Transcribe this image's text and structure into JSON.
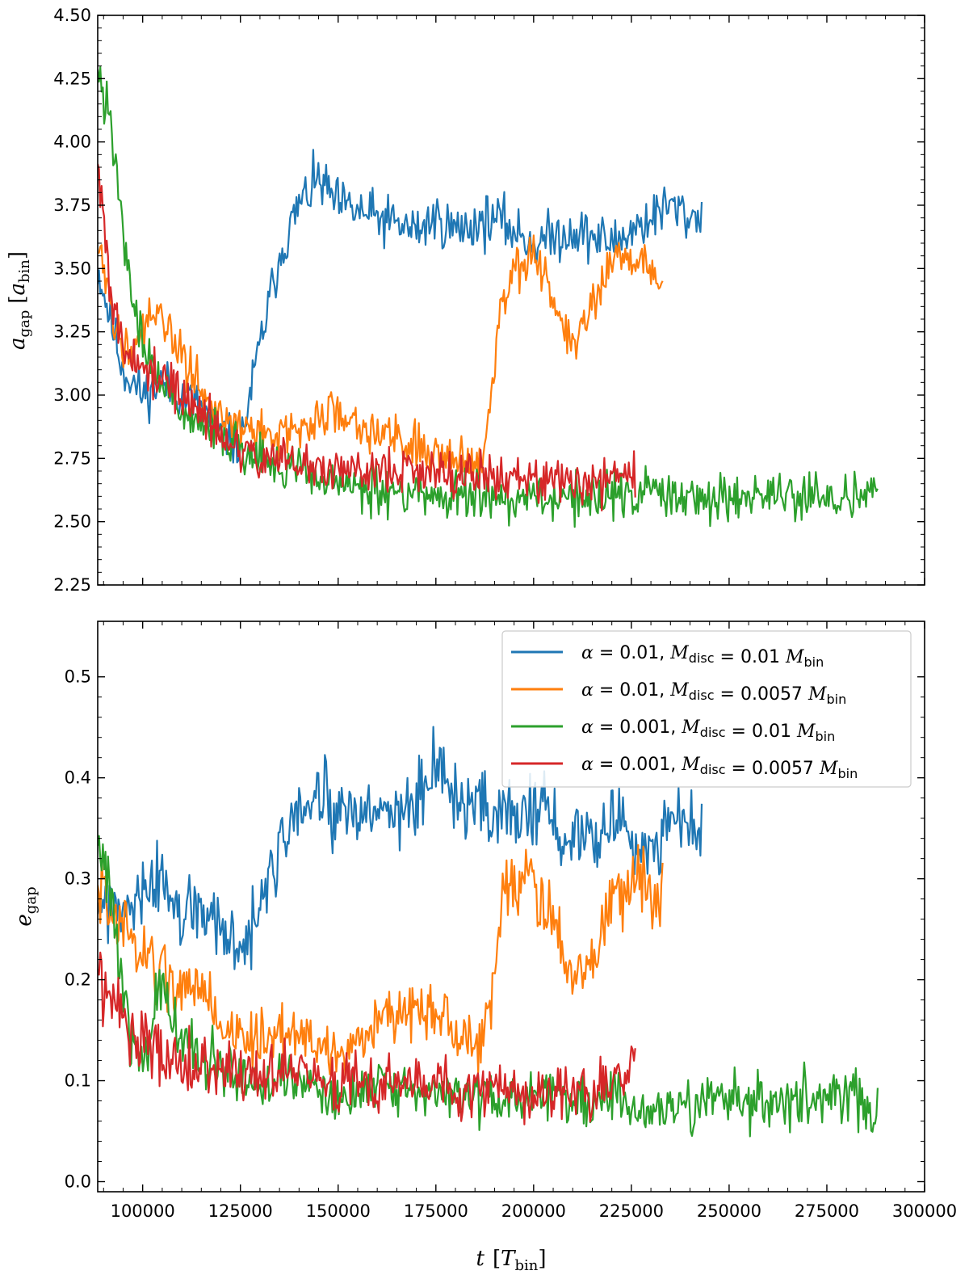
{
  "chart_data": [
    {
      "type": "line",
      "panel": "top",
      "ylabel": "a_gap [a_bin]",
      "ylabel_main": "a",
      "ylabel_sub": "gap",
      "ylabel_unit_main": "a",
      "ylabel_unit_sub": "bin",
      "xlim": [
        88500,
        300000
      ],
      "ylim": [
        2.25,
        4.5
      ],
      "yticks": [
        "2.25",
        "2.50",
        "2.75",
        "3.00",
        "3.25",
        "3.50",
        "3.75",
        "4.00",
        "4.25",
        "4.50"
      ],
      "ytick_values": [
        2.25,
        2.5,
        2.75,
        3.0,
        3.25,
        3.5,
        3.75,
        4.0,
        4.25,
        4.5
      ],
      "series": [
        {
          "name": "alpha=0.01, M_disc=0.01 M_bin",
          "color": "#1f77b4",
          "x": [
            88500,
            95000,
            100000,
            105000,
            110000,
            115000,
            120000,
            125000,
            130000,
            135000,
            140000,
            145000,
            150000,
            160000,
            170000,
            175000,
            180000,
            190000,
            200000,
            210000,
            220000,
            230000,
            235000,
            240000,
            243000
          ],
          "y": [
            3.5,
            3.1,
            3.0,
            3.05,
            3.0,
            2.95,
            2.85,
            2.8,
            3.2,
            3.55,
            3.75,
            3.85,
            3.75,
            3.7,
            3.65,
            3.7,
            3.65,
            3.7,
            3.6,
            3.65,
            3.6,
            3.7,
            3.75,
            3.7,
            3.72
          ]
        },
        {
          "name": "alpha=0.01, M_disc=0.0057 M_bin",
          "color": "#ff7f0e",
          "x": [
            88500,
            92000,
            96000,
            100000,
            105000,
            110000,
            115000,
            120000,
            130000,
            140000,
            150000,
            160000,
            170000,
            180000,
            187000,
            192000,
            195000,
            200000,
            205000,
            210000,
            215000,
            220000,
            225000,
            230000,
            233000
          ],
          "y": [
            3.6,
            3.3,
            3.2,
            3.25,
            3.3,
            3.15,
            3.05,
            2.9,
            2.85,
            2.85,
            2.95,
            2.85,
            2.8,
            2.75,
            2.75,
            3.4,
            3.5,
            3.55,
            3.35,
            3.2,
            3.35,
            3.5,
            3.55,
            3.5,
            3.45
          ]
        },
        {
          "name": "alpha=0.001, M_disc=0.01 M_bin",
          "color": "#2ca02c",
          "x": [
            88500,
            91000,
            94000,
            97000,
            100000,
            105000,
            110000,
            120000,
            130000,
            140000,
            150000,
            160000,
            170000,
            180000,
            190000,
            200000,
            210000,
            220000,
            230000,
            240000,
            250000,
            260000,
            270000,
            280000,
            288000
          ],
          "y": [
            4.3,
            4.1,
            3.8,
            3.4,
            3.2,
            3.05,
            2.95,
            2.85,
            2.75,
            2.7,
            2.65,
            2.62,
            2.62,
            2.6,
            2.6,
            2.6,
            2.6,
            2.6,
            2.62,
            2.6,
            2.6,
            2.6,
            2.6,
            2.6,
            2.65
          ]
        },
        {
          "name": "alpha=0.001, M_disc=0.0057 M_bin",
          "color": "#d62728",
          "x": [
            88500,
            92000,
            96000,
            100000,
            105000,
            110000,
            120000,
            130000,
            140000,
            150000,
            160000,
            170000,
            180000,
            190000,
            200000,
            210000,
            220000,
            226000
          ],
          "y": [
            3.9,
            3.35,
            3.15,
            3.1,
            3.05,
            3.0,
            2.85,
            2.75,
            2.72,
            2.72,
            2.7,
            2.7,
            2.68,
            2.68,
            2.66,
            2.66,
            2.65,
            2.68
          ]
        }
      ]
    },
    {
      "type": "line",
      "panel": "bottom",
      "ylabel": "e_gap",
      "ylabel_main": "e",
      "ylabel_sub": "gap",
      "xlabel": "t [T_bin]",
      "xlabel_main": "t",
      "xlabel_unit_main": "T",
      "xlabel_unit_sub": "bin",
      "xlim": [
        88500,
        300000
      ],
      "ylim": [
        -0.01,
        0.555
      ],
      "xticks": [
        "100000",
        "125000",
        "150000",
        "175000",
        "200000",
        "225000",
        "250000",
        "275000",
        "300000"
      ],
      "xtick_values": [
        100000,
        125000,
        150000,
        175000,
        200000,
        225000,
        250000,
        275000,
        300000
      ],
      "yticks": [
        "0.0",
        "0.1",
        "0.2",
        "0.3",
        "0.4",
        "0.5"
      ],
      "ytick_values": [
        0.0,
        0.1,
        0.2,
        0.3,
        0.4,
        0.5
      ],
      "legend_loc": "upper-right",
      "series": [
        {
          "name": "alpha=0.01, M_disc=0.01 M_bin",
          "color": "#1f77b4",
          "legend": {
            "alpha": "0.01",
            "mdisc": "0.01"
          },
          "x": [
            88500,
            95000,
            100000,
            105000,
            110000,
            115000,
            120000,
            125000,
            130000,
            135000,
            140000,
            145000,
            150000,
            160000,
            170000,
            175000,
            180000,
            190000,
            200000,
            210000,
            220000,
            230000,
            235000,
            240000,
            243000
          ],
          "y": [
            0.28,
            0.26,
            0.28,
            0.3,
            0.26,
            0.27,
            0.25,
            0.22,
            0.27,
            0.33,
            0.36,
            0.38,
            0.36,
            0.36,
            0.38,
            0.4,
            0.38,
            0.36,
            0.37,
            0.34,
            0.36,
            0.33,
            0.36,
            0.35,
            0.34
          ]
        },
        {
          "name": "alpha=0.01, M_disc=0.0057 M_bin",
          "color": "#ff7f0e",
          "legend": {
            "alpha": "0.01",
            "mdisc": "0.0057"
          },
          "x": [
            88500,
            92000,
            96000,
            100000,
            105000,
            110000,
            115000,
            120000,
            130000,
            140000,
            150000,
            160000,
            170000,
            180000,
            187000,
            192000,
            195000,
            200000,
            205000,
            210000,
            215000,
            220000,
            225000,
            230000,
            233000
          ],
          "y": [
            0.3,
            0.27,
            0.25,
            0.22,
            0.21,
            0.19,
            0.2,
            0.15,
            0.14,
            0.15,
            0.12,
            0.16,
            0.18,
            0.15,
            0.13,
            0.28,
            0.3,
            0.3,
            0.25,
            0.2,
            0.22,
            0.28,
            0.3,
            0.29,
            0.3
          ]
        },
        {
          "name": "alpha=0.001, M_disc=0.01 M_bin",
          "color": "#2ca02c",
          "legend": {
            "alpha": "0.001",
            "mdisc": "0.01"
          },
          "x": [
            88500,
            91000,
            94000,
            97000,
            100000,
            105000,
            110000,
            120000,
            130000,
            140000,
            150000,
            160000,
            170000,
            180000,
            190000,
            200000,
            210000,
            220000,
            230000,
            240000,
            250000,
            260000,
            270000,
            280000,
            288000
          ],
          "y": [
            0.33,
            0.3,
            0.22,
            0.14,
            0.12,
            0.19,
            0.14,
            0.11,
            0.1,
            0.1,
            0.08,
            0.1,
            0.09,
            0.09,
            0.08,
            0.09,
            0.08,
            0.08,
            0.07,
            0.07,
            0.09,
            0.08,
            0.08,
            0.09,
            0.07
          ]
        },
        {
          "name": "alpha=0.001, M_disc=0.0057 M_bin",
          "color": "#d62728",
          "legend": {
            "alpha": "0.001",
            "mdisc": "0.0057"
          },
          "x": [
            88500,
            92000,
            96000,
            100000,
            105000,
            110000,
            120000,
            130000,
            140000,
            150000,
            160000,
            170000,
            180000,
            190000,
            200000,
            210000,
            220000,
            226000
          ],
          "y": [
            0.2,
            0.18,
            0.15,
            0.14,
            0.13,
            0.12,
            0.11,
            0.1,
            0.11,
            0.1,
            0.1,
            0.1,
            0.09,
            0.1,
            0.08,
            0.1,
            0.09,
            0.12
          ]
        }
      ]
    }
  ],
  "legend_words": {
    "eq": "=",
    "m_main": "M",
    "m_sub": "disc",
    "bin_main": "M",
    "bin_sub": "bin"
  }
}
